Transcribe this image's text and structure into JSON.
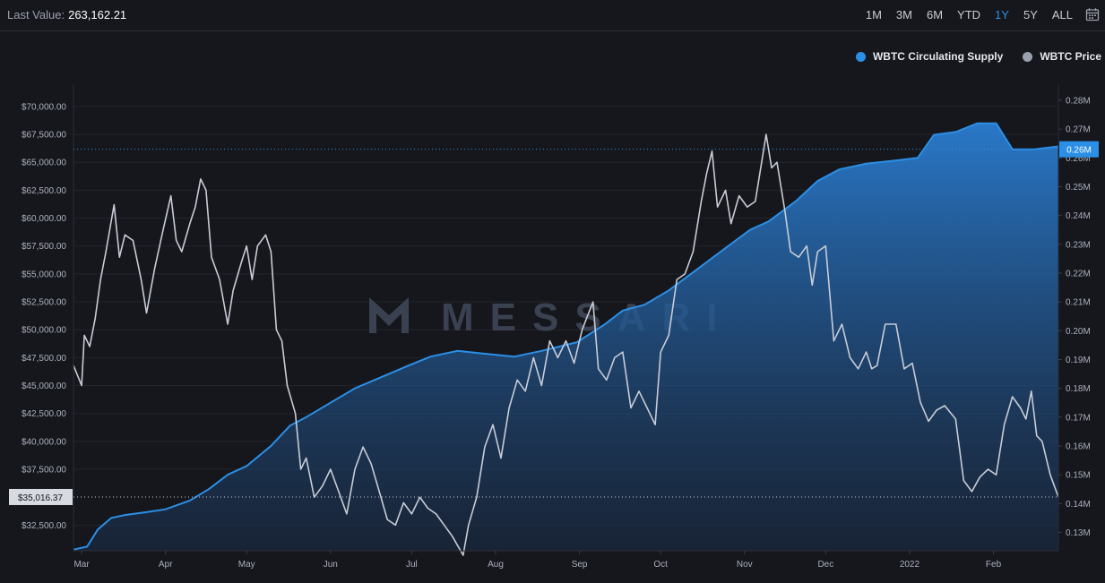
{
  "header": {
    "last_value_label": "Last Value:",
    "last_value": "263,162.21",
    "ranges": [
      "1M",
      "3M",
      "6M",
      "YTD",
      "1Y",
      "5Y",
      "ALL"
    ],
    "active_range": "1Y",
    "calendar_icon": "calendar-icon"
  },
  "legend": {
    "items": [
      {
        "label": "WBTC Circulating Supply",
        "color": "#2b8fe6"
      },
      {
        "label": "WBTC Price",
        "color": "#9aa0ad"
      }
    ]
  },
  "watermark": "MESSARI",
  "chart_data": {
    "type": "line",
    "x_ticks": [
      "Mar",
      "Apr",
      "May",
      "Jun",
      "Jul",
      "Aug",
      "Sep",
      "Oct",
      "Nov",
      "Dec",
      "2022",
      "Feb"
    ],
    "x_range": [
      "Feb 26",
      "Feb 25"
    ],
    "left_axis": {
      "ticks": [
        "$70,000.00",
        "$67,500.00",
        "$65,000.00",
        "$62,500.00",
        "$60,000.00",
        "$57,500.00",
        "$55,000.00",
        "$52,500.00",
        "$50,000.00",
        "$47,500.00",
        "$45,000.00",
        "$42,500.00",
        "$40,000.00",
        "$37,500.00",
        "$32,500.00"
      ],
      "range": [
        30200,
        72000
      ],
      "crosshair_label": "$35,016.37",
      "crosshair_value": 35016.37
    },
    "right_axis": {
      "ticks": [
        "0.28M",
        "0.27M",
        "0.26M",
        "0.25M",
        "0.24M",
        "0.23M",
        "0.22M",
        "0.21M",
        "0.20M",
        "0.19M",
        "0.18M",
        "0.17M",
        "0.16M",
        "0.15M",
        "0.14M",
        "0.13M"
      ],
      "range": [
        0.1236,
        0.2856
      ],
      "crosshair_label": "0.26M",
      "crosshair_value": 0.263
    },
    "series": [
      {
        "name": "WBTC Circulating Supply",
        "axis": "right",
        "color": "#2b8fe6",
        "points": [
          [
            "2021-02-26",
            0.124
          ],
          [
            "2021-03-03",
            0.125
          ],
          [
            "2021-03-07",
            0.131
          ],
          [
            "2021-03-12",
            0.135
          ],
          [
            "2021-03-17",
            0.136
          ],
          [
            "2021-03-25",
            0.137
          ],
          [
            "2021-04-01",
            0.138
          ],
          [
            "2021-04-10",
            0.141
          ],
          [
            "2021-04-17",
            0.145
          ],
          [
            "2021-04-24",
            0.15
          ],
          [
            "2021-05-01",
            0.153
          ],
          [
            "2021-05-10",
            0.16
          ],
          [
            "2021-05-17",
            0.167
          ],
          [
            "2021-05-23",
            0.17
          ],
          [
            "2021-06-01",
            0.175
          ],
          [
            "2021-06-10",
            0.18
          ],
          [
            "2021-06-20",
            0.184
          ],
          [
            "2021-06-30",
            0.188
          ],
          [
            "2021-07-08",
            0.191
          ],
          [
            "2021-07-18",
            0.193
          ],
          [
            "2021-07-28",
            0.192
          ],
          [
            "2021-08-08",
            0.191
          ],
          [
            "2021-08-18",
            0.193
          ],
          [
            "2021-08-31",
            0.196
          ],
          [
            "2021-09-10",
            0.202
          ],
          [
            "2021-09-17",
            0.207
          ],
          [
            "2021-09-25",
            0.209
          ],
          [
            "2021-10-04",
            0.214
          ],
          [
            "2021-10-14",
            0.221
          ],
          [
            "2021-10-24",
            0.228
          ],
          [
            "2021-11-03",
            0.235
          ],
          [
            "2021-11-10",
            0.238
          ],
          [
            "2021-11-20",
            0.245
          ],
          [
            "2021-11-28",
            0.252
          ],
          [
            "2021-12-06",
            0.256
          ],
          [
            "2021-12-16",
            0.258
          ],
          [
            "2021-12-26",
            0.259
          ],
          [
            "2022-01-04",
            0.26
          ],
          [
            "2022-01-10",
            0.268
          ],
          [
            "2022-01-18",
            0.269
          ],
          [
            "2022-01-26",
            0.272
          ],
          [
            "2022-02-02",
            0.272
          ],
          [
            "2022-02-08",
            0.263
          ],
          [
            "2022-02-16",
            0.263
          ],
          [
            "2022-02-25",
            0.264
          ]
        ]
      },
      {
        "name": "WBTC Price",
        "axis": "left",
        "color": "#c8ccd6",
        "points": [
          [
            "2021-02-26",
            46800
          ],
          [
            "2021-03-01",
            45000
          ],
          [
            "2021-03-02",
            49500
          ],
          [
            "2021-03-04",
            48500
          ],
          [
            "2021-03-06",
            51000
          ],
          [
            "2021-03-08",
            54500
          ],
          [
            "2021-03-10",
            57000
          ],
          [
            "2021-03-13",
            61200
          ],
          [
            "2021-03-15",
            56500
          ],
          [
            "2021-03-17",
            58500
          ],
          [
            "2021-03-20",
            58000
          ],
          [
            "2021-03-23",
            54500
          ],
          [
            "2021-03-25",
            51500
          ],
          [
            "2021-03-28",
            55500
          ],
          [
            "2021-03-31",
            58800
          ],
          [
            "2021-04-03",
            62000
          ],
          [
            "2021-04-05",
            58000
          ],
          [
            "2021-04-07",
            57000
          ],
          [
            "2021-04-10",
            59500
          ],
          [
            "2021-04-12",
            61000
          ],
          [
            "2021-04-14",
            63500
          ],
          [
            "2021-04-16",
            62500
          ],
          [
            "2021-04-18",
            56500
          ],
          [
            "2021-04-21",
            54500
          ],
          [
            "2021-04-24",
            50500
          ],
          [
            "2021-04-26",
            53500
          ],
          [
            "2021-04-29",
            56000
          ],
          [
            "2021-05-01",
            57500
          ],
          [
            "2021-05-03",
            54500
          ],
          [
            "2021-05-05",
            57500
          ],
          [
            "2021-05-08",
            58500
          ],
          [
            "2021-05-10",
            57000
          ],
          [
            "2021-05-12",
            50000
          ],
          [
            "2021-05-14",
            49000
          ],
          [
            "2021-05-16",
            45000
          ],
          [
            "2021-05-19",
            42500
          ],
          [
            "2021-05-21",
            37500
          ],
          [
            "2021-05-23",
            38500
          ],
          [
            "2021-05-26",
            35000
          ],
          [
            "2021-05-29",
            36000
          ],
          [
            "2021-06-01",
            37500
          ],
          [
            "2021-06-04",
            35500
          ],
          [
            "2021-06-07",
            33500
          ],
          [
            "2021-06-10",
            37500
          ],
          [
            "2021-06-13",
            39500
          ],
          [
            "2021-06-16",
            38000
          ],
          [
            "2021-06-19",
            35500
          ],
          [
            "2021-06-22",
            33000
          ],
          [
            "2021-06-25",
            32500
          ],
          [
            "2021-06-28",
            34500
          ],
          [
            "2021-07-01",
            33500
          ],
          [
            "2021-07-04",
            35000
          ],
          [
            "2021-07-07",
            34000
          ],
          [
            "2021-07-10",
            33500
          ],
          [
            "2021-07-13",
            32500
          ],
          [
            "2021-07-16",
            31500
          ],
          [
            "2021-07-20",
            29800
          ],
          [
            "2021-07-22",
            32500
          ],
          [
            "2021-07-25",
            35000
          ],
          [
            "2021-07-28",
            39500
          ],
          [
            "2021-07-31",
            41500
          ],
          [
            "2021-08-03",
            38500
          ],
          [
            "2021-08-06",
            43000
          ],
          [
            "2021-08-09",
            45500
          ],
          [
            "2021-08-12",
            44500
          ],
          [
            "2021-08-15",
            47500
          ],
          [
            "2021-08-18",
            45000
          ],
          [
            "2021-08-21",
            49000
          ],
          [
            "2021-08-24",
            47500
          ],
          [
            "2021-08-27",
            49000
          ],
          [
            "2021-08-30",
            47000
          ],
          [
            "2021-09-02",
            50000
          ],
          [
            "2021-09-06",
            52500
          ],
          [
            "2021-09-08",
            46500
          ],
          [
            "2021-09-11",
            45500
          ],
          [
            "2021-09-14",
            47500
          ],
          [
            "2021-09-17",
            48000
          ],
          [
            "2021-09-20",
            43000
          ],
          [
            "2021-09-23",
            44500
          ],
          [
            "2021-09-26",
            43000
          ],
          [
            "2021-09-29",
            41500
          ],
          [
            "2021-10-01",
            48000
          ],
          [
            "2021-10-04",
            49500
          ],
          [
            "2021-10-07",
            54500
          ],
          [
            "2021-10-10",
            55000
          ],
          [
            "2021-10-13",
            57000
          ],
          [
            "2021-10-16",
            61500
          ],
          [
            "2021-10-18",
            64000
          ],
          [
            "2021-10-20",
            66000
          ],
          [
            "2021-10-22",
            61000
          ],
          [
            "2021-10-25",
            62500
          ],
          [
            "2021-10-27",
            59500
          ],
          [
            "2021-10-30",
            62000
          ],
          [
            "2021-11-02",
            61000
          ],
          [
            "2021-11-05",
            61500
          ],
          [
            "2021-11-09",
            67500
          ],
          [
            "2021-11-11",
            64500
          ],
          [
            "2021-11-13",
            65000
          ],
          [
            "2021-11-16",
            60500
          ],
          [
            "2021-11-18",
            57000
          ],
          [
            "2021-11-21",
            56500
          ],
          [
            "2021-11-24",
            57500
          ],
          [
            "2021-11-26",
            54000
          ],
          [
            "2021-11-28",
            57000
          ],
          [
            "2021-12-01",
            57500
          ],
          [
            "2021-12-04",
            49000
          ],
          [
            "2021-12-07",
            50500
          ],
          [
            "2021-12-10",
            47500
          ],
          [
            "2021-12-13",
            46500
          ],
          [
            "2021-12-16",
            48000
          ],
          [
            "2021-12-18",
            46500
          ],
          [
            "2021-12-20",
            46800
          ],
          [
            "2021-12-23",
            50500
          ],
          [
            "2021-12-27",
            50500
          ],
          [
            "2021-12-30",
            46500
          ],
          [
            "2022-01-02",
            47000
          ],
          [
            "2022-01-05",
            43500
          ],
          [
            "2022-01-08",
            41800
          ],
          [
            "2022-01-11",
            42800
          ],
          [
            "2022-01-14",
            43200
          ],
          [
            "2022-01-18",
            42000
          ],
          [
            "2022-01-21",
            36500
          ],
          [
            "2022-01-24",
            35500
          ],
          [
            "2022-01-27",
            36800
          ],
          [
            "2022-01-30",
            37500
          ],
          [
            "2022-02-02",
            37000
          ],
          [
            "2022-02-05",
            41500
          ],
          [
            "2022-02-08",
            44000
          ],
          [
            "2022-02-11",
            43000
          ],
          [
            "2022-02-13",
            42000
          ],
          [
            "2022-02-15",
            44500
          ],
          [
            "2022-02-17",
            40500
          ],
          [
            "2022-02-19",
            40000
          ],
          [
            "2022-02-22",
            37000
          ],
          [
            "2022-02-25",
            35016
          ]
        ]
      }
    ]
  }
}
